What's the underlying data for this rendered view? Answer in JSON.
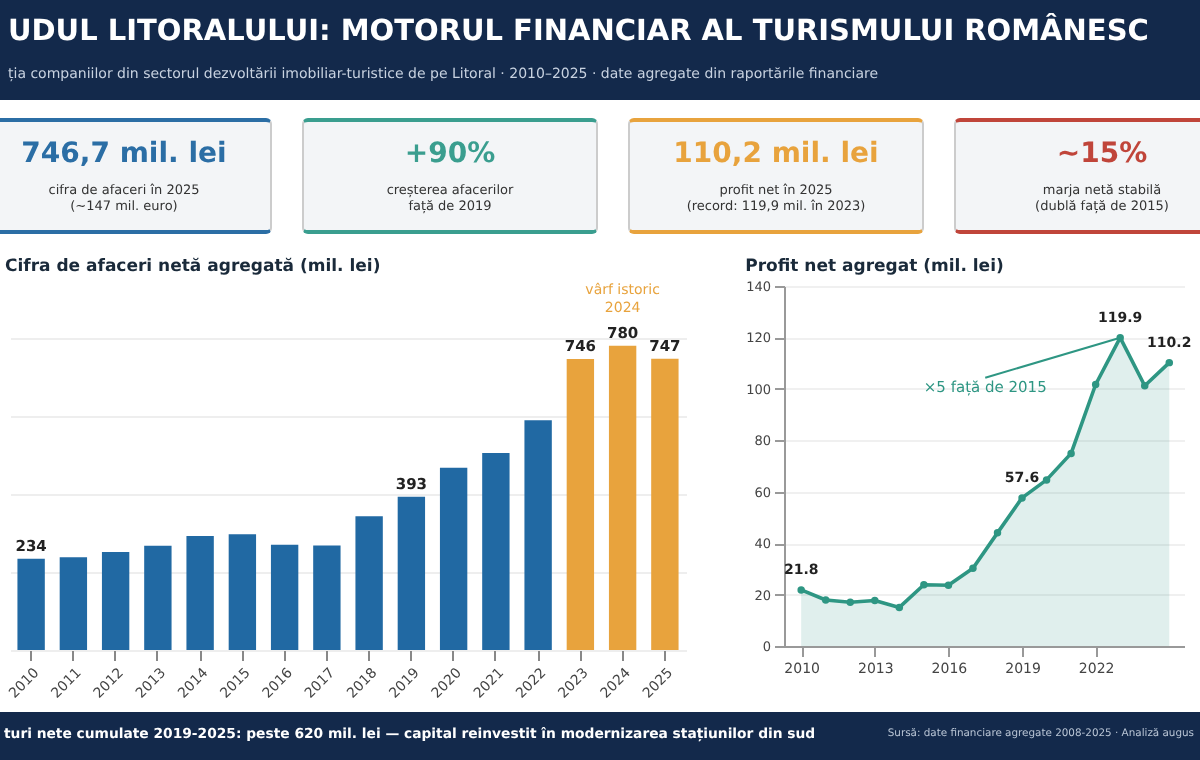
{
  "chart_data": [
    {
      "type": "other",
      "title": "UDUL LITORALULUI: MOTORUL FINANCIAR AL TURISMULUI ROMÂNESC",
      "subtitle": "ția companiilor din sectorul dezvoltării imobiliar-turistice de pe Litoral · 2010–2025 · date agregate din raportările financiare",
      "annotations": [
        "746,7 mil. lei",
        "cifra de afaceri în 2025",
        "(~147 mil. euro)",
        "+90%",
        "creșterea afacerilor",
        "față de 2019",
        "110,2 mil. lei",
        "profit net în 2025",
        "(record: 119,9 mil. în 2023)",
        "~15%",
        "marja netă stabilă",
        "(dublă față de 2015)",
        "turi nete cumulate 2019-2025: peste 620 mil. lei — capital reinvestit în modernizarea stațiunilor din sud",
        "Sursă: date financiare agregate 2008-2025 · Analiză augus"
      ],
      "colors": [
        "#2b6ea5",
        "#3a9e8f",
        "#e8a33d",
        "#c0453a"
      ]
    },
    {
      "type": "bar",
      "title": "Cifra de afaceri netă agregată (mil. lei)",
      "categories": [
        "2010",
        "2011",
        "2012",
        "2013",
        "2014",
        "2015",
        "2016",
        "2017",
        "2018",
        "2019",
        "2020",
        "2021",
        "2022",
        "2023",
        "2024",
        "2025"
      ],
      "values": [
        234,
        238,
        251,
        267,
        292,
        297,
        270,
        268,
        343,
        393,
        467,
        505,
        589,
        746,
        780,
        747
      ],
      "colors": [
        "#2169a3",
        "#2169a3",
        "#2169a3",
        "#2169a3",
        "#2169a3",
        "#2169a3",
        "#2169a3",
        "#2169a3",
        "#2169a3",
        "#2169a3",
        "#2169a3",
        "#2169a3",
        "#2169a3",
        "#e8a33d",
        "#e8a33d",
        "#e8a33d"
      ],
      "value_labels": [
        "234",
        null,
        null,
        null,
        null,
        null,
        null,
        null,
        null,
        "393",
        null,
        null,
        null,
        "746",
        "780",
        "747"
      ],
      "grid": "y",
      "annotations": [
        {
          "text": "vârf istoric\n2024",
          "x": "2024",
          "y": 780
        }
      ]
    },
    {
      "type": "line",
      "title": "Profit net agregat (mil. lei)",
      "x": [
        2010,
        2011,
        2012,
        2013,
        2014,
        2015,
        2016,
        2017,
        2018,
        2019,
        2020,
        2021,
        2022,
        2023,
        2024,
        2025
      ],
      "series": [
        {
          "type": "area",
          "color": "#2e9683",
          "values": [
            21.8,
            17.9,
            17.0,
            17.7,
            15.0,
            23.8,
            23.6,
            30.2,
            44.0,
            57.6,
            64.6,
            74.9,
            101.7,
            119.9,
            101.2,
            110.2
          ],
          "value_labels": [
            "21.8",
            null,
            null,
            null,
            null,
            null,
            null,
            null,
            null,
            "57.6",
            null,
            null,
            null,
            "119.9",
            null,
            "110.2"
          ]
        }
      ],
      "marker": "circle",
      "xlim": [
        2009.3,
        2025.6
      ],
      "xticks": [
        2010,
        2013,
        2016,
        2019,
        2022
      ],
      "ylim": [
        0,
        140
      ],
      "yticks": [
        0,
        20,
        40,
        60,
        80,
        100,
        120,
        140
      ],
      "grid": "y",
      "annotations": [
        {
          "text": "×5 față de 2015",
          "x": 2023,
          "y": 119.9
        }
      ]
    }
  ]
}
